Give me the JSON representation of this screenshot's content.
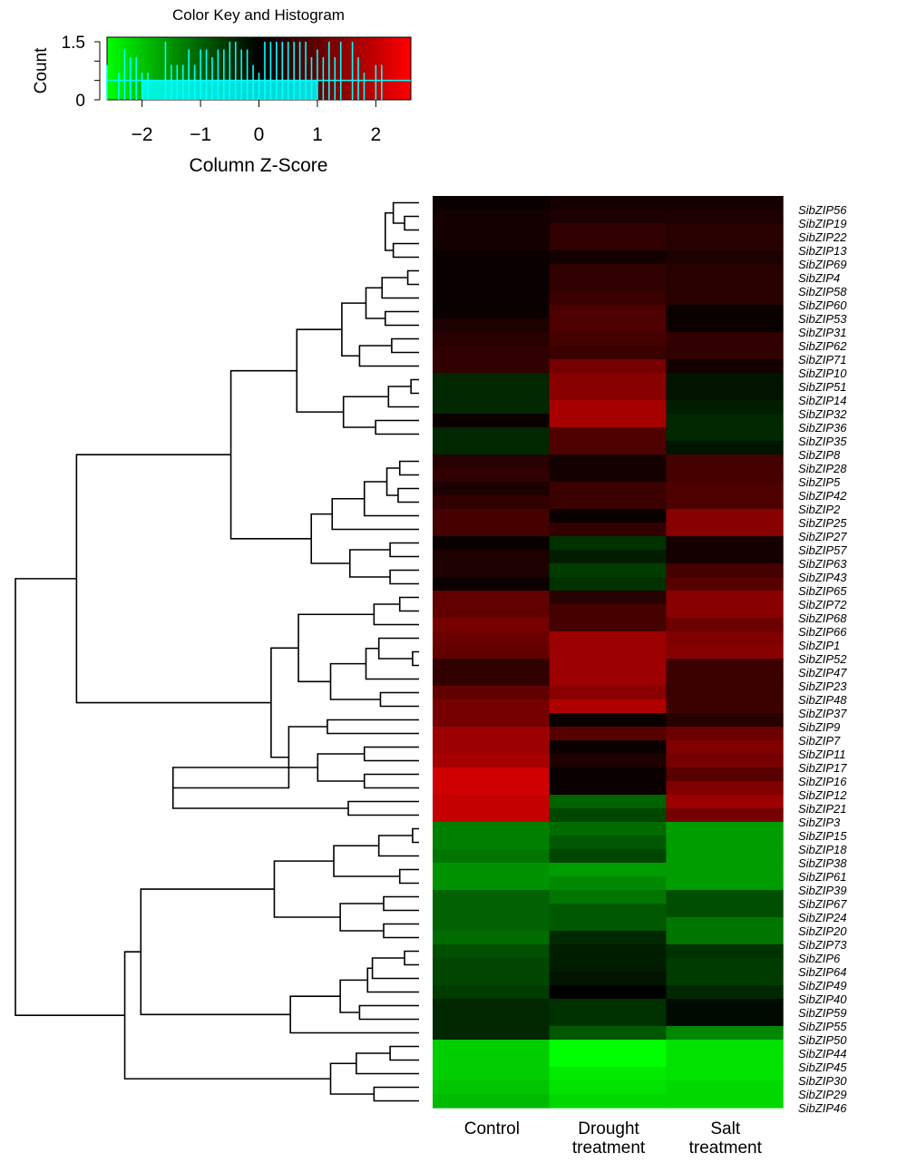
{
  "chart_data": {
    "type": "heatmap",
    "title": "",
    "color_key": {
      "title": "Color Key and Histogram",
      "xlabel": "Column Z-Score",
      "ylabel": "Count",
      "x_ticks": [
        "−2",
        "−1",
        "0",
        "1",
        "2"
      ],
      "x_tick_values": [
        -2,
        -1,
        0,
        1,
        2
      ],
      "y_ticks": [
        "0",
        "1.5"
      ],
      "y_tick_values": [
        0,
        1.5
      ],
      "range": [
        -2.6,
        2.6
      ],
      "colors": {
        "low": "#00ff00",
        "mid": "#000000",
        "high": "#ff0000",
        "histogram": "#00ffff"
      }
    },
    "columns": [
      "Control",
      "Drought\ntreatment",
      "Salt\ntreatment"
    ],
    "rows": [
      "SibZIP56",
      "SibZIP19",
      "SibZIP22",
      "SibZIP13",
      "SibZIP69",
      "SibZIP4",
      "SibZIP58",
      "SibZIP60",
      "SibZIP53",
      "SibZIP31",
      "SibZIP62",
      "SibZIP71",
      "SibZIP10",
      "SibZIP51",
      "SibZIP14",
      "SibZIP32",
      "SibZIP36",
      "SibZIP35",
      "SibZIP8",
      "SibZIP28",
      "SibZIP5",
      "SibZIP42",
      "SibZIP2",
      "SibZIP25",
      "SibZIP27",
      "SibZIP57",
      "SibZIP63",
      "SibZIP43",
      "SibZIP65",
      "SibZIP72",
      "SibZIP68",
      "SibZIP66",
      "SibZIP1",
      "SibZIP52",
      "SibZIP47",
      "SibZIP23",
      "SibZIP48",
      "SibZIP37",
      "SibZIP9",
      "SibZIP7",
      "SibZIP11",
      "SibZIP17",
      "SibZIP16",
      "SibZIP12",
      "SibZIP21",
      "SibZIP3",
      "SibZIP15",
      "SibZIP18",
      "SibZIP38",
      "SibZIP61",
      "SibZIP39",
      "SibZIP67",
      "SibZIP24",
      "SibZIP20",
      "SibZIP73",
      "SibZIP6",
      "SibZIP64",
      "SibZIP49",
      "SibZIP40",
      "SibZIP59",
      "SibZIP55",
      "SibZIP50",
      "SibZIP44",
      "SibZIP45",
      "SibZIP30",
      "SibZIP29",
      "SibZIP46"
    ],
    "values": [
      [
        0.1,
        0.2,
        0.2
      ],
      [
        0.2,
        0.3,
        0.3
      ],
      [
        0.2,
        0.5,
        0.4
      ],
      [
        0.2,
        0.5,
        0.4
      ],
      [
        0.1,
        0.2,
        0.3
      ],
      [
        0.1,
        0.5,
        0.4
      ],
      [
        0.1,
        0.5,
        0.4
      ],
      [
        0.1,
        0.6,
        0.4
      ],
      [
        0.1,
        0.8,
        0.1
      ],
      [
        0.3,
        0.8,
        0.1
      ],
      [
        0.4,
        0.7,
        0.5
      ],
      [
        0.5,
        0.6,
        0.5
      ],
      [
        0.5,
        1.2,
        0.2
      ],
      [
        -0.4,
        1.4,
        -0.2
      ],
      [
        -0.4,
        1.4,
        -0.2
      ],
      [
        -0.4,
        1.7,
        -0.3
      ],
      [
        0.1,
        1.7,
        -0.4
      ],
      [
        -0.4,
        0.8,
        -0.4
      ],
      [
        -0.4,
        0.8,
        -0.2
      ],
      [
        0.4,
        0.2,
        0.7
      ],
      [
        0.5,
        0.2,
        0.7
      ],
      [
        0.3,
        0.6,
        0.8
      ],
      [
        0.5,
        0.6,
        0.8
      ],
      [
        0.7,
        0.1,
        1.4
      ],
      [
        0.7,
        0.5,
        1.4
      ],
      [
        0.1,
        -0.5,
        0.2
      ],
      [
        0.3,
        -0.3,
        0.2
      ],
      [
        0.3,
        -0.6,
        0.7
      ],
      [
        0.1,
        -0.5,
        0.9
      ],
      [
        1.0,
        0.4,
        1.4
      ],
      [
        1.0,
        0.7,
        1.4
      ],
      [
        1.2,
        0.7,
        1.1
      ],
      [
        1.1,
        1.6,
        1.3
      ],
      [
        1.0,
        1.6,
        1.4
      ],
      [
        0.5,
        1.6,
        0.6
      ],
      [
        0.5,
        1.6,
        0.6
      ],
      [
        1.0,
        1.4,
        0.6
      ],
      [
        1.2,
        1.8,
        0.6
      ],
      [
        1.2,
        0.1,
        0.4
      ],
      [
        1.6,
        0.9,
        1.1
      ],
      [
        1.6,
        0.1,
        1.3
      ],
      [
        1.7,
        0.3,
        1.2
      ],
      [
        2.1,
        0.1,
        0.9
      ],
      [
        2.1,
        0.1,
        1.3
      ],
      [
        2.0,
        -1.0,
        1.6
      ],
      [
        2.0,
        -0.7,
        1.2
      ],
      [
        -1.3,
        -1.1,
        -1.6
      ],
      [
        -1.3,
        -0.9,
        -1.6
      ],
      [
        -1.2,
        -0.7,
        -1.6
      ],
      [
        -1.5,
        -1.6,
        -1.6
      ],
      [
        -1.5,
        -1.4,
        -1.6
      ],
      [
        -1.0,
        -1.2,
        -0.8
      ],
      [
        -1.0,
        -0.9,
        -0.8
      ],
      [
        -1.0,
        -0.9,
        -1.2
      ],
      [
        -1.1,
        -0.4,
        -1.2
      ],
      [
        -0.8,
        -0.3,
        -0.5
      ],
      [
        -0.7,
        -0.3,
        -0.6
      ],
      [
        -0.7,
        -0.2,
        -0.6
      ],
      [
        -0.6,
        0.0,
        -0.4
      ],
      [
        -0.4,
        -0.5,
        -0.1
      ],
      [
        -0.4,
        -0.5,
        -0.1
      ],
      [
        -0.4,
        -0.9,
        -1.4
      ],
      [
        -2.1,
        -2.6,
        -2.3
      ],
      [
        -2.1,
        -2.6,
        -2.3
      ],
      [
        -2.1,
        -2.4,
        -2.3
      ],
      [
        -2.0,
        -2.3,
        -2.2
      ],
      [
        -1.9,
        -2.2,
        -2.2
      ]
    ],
    "dendrogram": {
      "merges": [
        [
          5,
          6,
          0.07
        ],
        [
          1,
          2,
          0.09
        ],
        [
          0,
          "n1",
          0.16
        ],
        [
          3,
          4,
          0.16
        ],
        [
          "n2",
          "n3",
          0.21
        ],
        [
          "n0",
          7,
          0.23
        ],
        [
          8,
          9,
          0.21
        ],
        [
          "n5",
          "n6",
          0.33
        ],
        [
          10,
          11,
          0.17
        ],
        [
          "n8",
          12,
          0.37
        ],
        [
          "n7",
          "n9",
          0.48
        ],
        [
          13,
          14,
          0.05
        ],
        [
          "n11",
          15,
          0.19
        ],
        [
          16,
          17,
          0.27
        ],
        [
          "n12",
          "n13",
          0.47
        ],
        [
          "n10",
          "n14",
          0.76
        ],
        [
          19,
          20,
          0.12
        ],
        [
          21,
          22,
          0.13
        ],
        [
          "n16",
          "n17",
          0.2
        ],
        [
          "n18",
          23,
          0.34
        ],
        [
          "n19",
          24,
          0.54
        ],
        [
          25,
          26,
          0.18
        ],
        [
          27,
          28,
          0.18
        ],
        [
          "n21",
          "n22",
          0.43
        ],
        [
          "n20",
          "n23",
          0.67
        ],
        [
          "n15",
          "n24",
          1.17
        ],
        [
          29,
          30,
          0.12
        ],
        [
          "n26",
          31,
          0.28
        ],
        [
          33,
          34,
          0.04
        ],
        [
          32,
          "n28",
          0.25
        ],
        [
          "n29",
          35,
          0.33
        ],
        [
          36,
          37,
          0.24
        ],
        [
          "n30",
          "n31",
          0.55
        ],
        [
          "n27",
          "n32",
          0.75
        ],
        [
          38,
          39,
          0.57
        ],
        [
          40,
          41,
          0.34
        ],
        [
          42,
          43,
          0.34
        ],
        [
          "n35",
          "n36",
          0.63
        ],
        [
          44,
          45,
          0.44
        ],
        [
          "n37",
          "n38",
          1.53
        ],
        [
          "n34",
          "n39",
          0.81
        ],
        [
          "n33",
          "n40",
          0.92
        ],
        [
          "n25",
          "n41",
          2.13
        ],
        [
          46,
          47,
          0.04
        ],
        [
          "n43",
          48,
          0.25
        ],
        [
          49,
          50,
          0.12
        ],
        [
          "n44",
          "n45",
          0.53
        ],
        [
          51,
          52,
          0.22
        ],
        [
          53,
          54,
          0.22
        ],
        [
          "n47",
          "n48",
          0.49
        ],
        [
          "n46",
          "n49",
          0.9
        ],
        [
          55,
          56,
          0.09
        ],
        [
          "n51",
          57,
          0.29
        ],
        [
          "n52",
          58,
          0.32
        ],
        [
          59,
          60,
          0.37
        ],
        [
          "n53",
          "n54",
          0.49
        ],
        [
          "n55",
          61,
          0.8
        ],
        [
          "n50",
          "n56",
          1.73
        ],
        [
          62,
          63,
          0.18
        ],
        [
          "n58",
          64,
          0.39
        ],
        [
          65,
          66,
          0.28
        ],
        [
          "n59",
          "n60",
          0.55
        ],
        [
          "n57",
          "n61",
          1.83
        ],
        [
          "n42",
          "n62",
          2.51
        ]
      ]
    }
  }
}
